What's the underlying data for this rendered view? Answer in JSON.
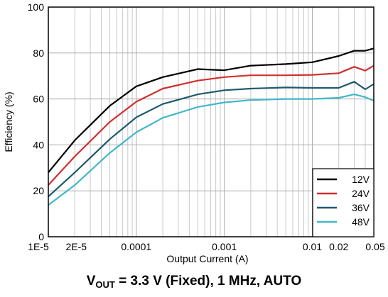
{
  "chart_data": {
    "type": "line",
    "xlabel": "Output Current (A)",
    "ylabel": "Efficiency (%)",
    "xscale": "log",
    "xlim": [
      1e-05,
      0.05
    ],
    "ylim": [
      0,
      100
    ],
    "grid": true,
    "legend_position": "bottom-right",
    "x_ticks": [
      {
        "value": 1e-05,
        "label": "1E-5"
      },
      {
        "value": 2e-05,
        "label": "2E-5"
      },
      {
        "value": 0.0001,
        "label": "0.0001"
      },
      {
        "value": 0.001,
        "label": "0.001"
      },
      {
        "value": 0.01,
        "label": "0.01"
      },
      {
        "value": 0.02,
        "label": "0.02"
      },
      {
        "value": 0.05,
        "label": "0.05"
      }
    ],
    "y_ticks": [
      0,
      20,
      40,
      60,
      80,
      100
    ],
    "caption": {
      "v": "V",
      "sub": "OUT",
      "rest": " = 3.3 V (Fixed), 1 MHz, AUTO"
    },
    "series": [
      {
        "name": "12V",
        "color": "#000000",
        "points": [
          [
            1e-05,
            28
          ],
          [
            2e-05,
            42
          ],
          [
            5e-05,
            57
          ],
          [
            0.0001,
            65.5
          ],
          [
            0.0002,
            69.5
          ],
          [
            0.0005,
            73
          ],
          [
            0.001,
            72.5
          ],
          [
            0.002,
            74.5
          ],
          [
            0.005,
            75.2
          ],
          [
            0.01,
            76
          ],
          [
            0.02,
            78.7
          ],
          [
            0.03,
            81
          ],
          [
            0.04,
            81
          ],
          [
            0.05,
            82
          ]
        ]
      },
      {
        "name": "24V",
        "color": "#d03030",
        "points": [
          [
            1e-05,
            22.5
          ],
          [
            2e-05,
            35
          ],
          [
            5e-05,
            50
          ],
          [
            0.0001,
            58.8
          ],
          [
            0.0002,
            64.5
          ],
          [
            0.0005,
            68
          ],
          [
            0.001,
            69.5
          ],
          [
            0.002,
            70.3
          ],
          [
            0.005,
            70.3
          ],
          [
            0.01,
            70.5
          ],
          [
            0.02,
            71.2
          ],
          [
            0.03,
            74
          ],
          [
            0.04,
            72.3
          ],
          [
            0.05,
            74.5
          ]
        ]
      },
      {
        "name": "36V",
        "color": "#1d5a6e",
        "points": [
          [
            1e-05,
            17.5
          ],
          [
            2e-05,
            28
          ],
          [
            5e-05,
            42.5
          ],
          [
            0.0001,
            52
          ],
          [
            0.0002,
            57.8
          ],
          [
            0.0005,
            62
          ],
          [
            0.001,
            63.8
          ],
          [
            0.002,
            64.5
          ],
          [
            0.005,
            65
          ],
          [
            0.01,
            64.8
          ],
          [
            0.02,
            64.8
          ],
          [
            0.03,
            67.5
          ],
          [
            0.04,
            64.2
          ],
          [
            0.05,
            66.5
          ]
        ]
      },
      {
        "name": "48V",
        "color": "#41b8c8",
        "points": [
          [
            1e-05,
            13.8
          ],
          [
            2e-05,
            22.5
          ],
          [
            5e-05,
            36.5
          ],
          [
            0.0001,
            45.5
          ],
          [
            0.0002,
            51.8
          ],
          [
            0.0005,
            56.5
          ],
          [
            0.001,
            58.5
          ],
          [
            0.002,
            59.5
          ],
          [
            0.005,
            60
          ],
          [
            0.01,
            60
          ],
          [
            0.02,
            60.5
          ],
          [
            0.03,
            62
          ],
          [
            0.04,
            60.8
          ],
          [
            0.05,
            59.2
          ]
        ]
      }
    ]
  }
}
